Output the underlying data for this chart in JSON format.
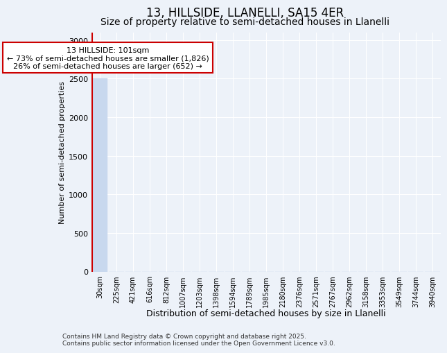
{
  "title": "13, HILLSIDE, LLANELLI, SA15 4ER",
  "subtitle": "Size of property relative to semi-detached houses in Llanelli",
  "xlabel": "Distribution of semi-detached houses by size in Llanelli",
  "ylabel": "Number of semi-detached properties",
  "bin_labels": [
    "30sqm",
    "225sqm",
    "421sqm",
    "616sqm",
    "812sqm",
    "1007sqm",
    "1203sqm",
    "1398sqm",
    "1594sqm",
    "1789sqm",
    "1985sqm",
    "2180sqm",
    "2376sqm",
    "2571sqm",
    "2767sqm",
    "2962sqm",
    "3158sqm",
    "3353sqm",
    "3549sqm",
    "3744sqm",
    "3940sqm"
  ],
  "bar_heights": [
    2500,
    0,
    0,
    0,
    0,
    0,
    0,
    0,
    0,
    0,
    0,
    0,
    0,
    0,
    0,
    0,
    0,
    0,
    0,
    0,
    0
  ],
  "bar_color": "#c8d8ee",
  "marker_color": "#cc0000",
  "annotation_title": "13 HILLSIDE: 101sqm",
  "annotation_line1": "← 73% of semi-detached houses are smaller (1,826)",
  "annotation_line2": "26% of semi-detached houses are larger (652) →",
  "ylim": [
    0,
    3100
  ],
  "yticks": [
    0,
    500,
    1000,
    1500,
    2000,
    2500,
    3000
  ],
  "footnote1": "Contains HM Land Registry data © Crown copyright and database right 2025.",
  "footnote2": "Contains public sector information licensed under the Open Government Licence v3.0.",
  "background_color": "#edf2f9",
  "grid_color": "#ffffff",
  "title_fontsize": 12,
  "subtitle_fontsize": 10
}
